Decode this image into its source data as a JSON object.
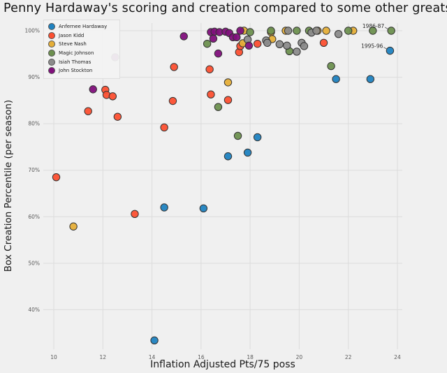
{
  "title": "Penny Hardaway's scoring and creation compared to some other greats",
  "chart_data": {
    "type": "scatter",
    "title": "Penny Hardaway's scoring and creation compared to some other greats",
    "xlabel": "Inflation Adjusted Pts/75 poss",
    "ylabel": "Box Creation Percentile (per season)",
    "x_ticks": [
      10,
      12,
      14,
      16,
      18,
      20,
      22,
      24
    ],
    "y_ticks": [
      40,
      50,
      60,
      70,
      80,
      90,
      100
    ],
    "y_tick_suffix": "%",
    "xlim": [
      9.57,
      24.2
    ],
    "ylim": [
      31.5,
      101.7
    ],
    "grid": true,
    "legend_position": "upper-left",
    "marker_edge_color": "#333333",
    "grid_color": "#dcdcdc",
    "background_color": "#f0f0f0",
    "series": [
      {
        "name": "Anfernee Hardaway",
        "color": "#1f82c0",
        "points": [
          [
            14.1,
            33.4
          ],
          [
            14.5,
            62.0
          ],
          [
            16.1,
            61.8
          ],
          [
            17.1,
            73.0
          ],
          [
            17.9,
            73.8
          ],
          [
            18.3,
            77.1
          ],
          [
            21.5,
            89.6
          ],
          [
            22.9,
            89.6
          ],
          [
            23.7,
            95.7
          ]
        ]
      },
      {
        "name": "Jason Kidd",
        "color": "#fc4f30",
        "points": [
          [
            10.1,
            68.5
          ],
          [
            11.4,
            82.7
          ],
          [
            12.1,
            87.3
          ],
          [
            12.15,
            86.2
          ],
          [
            12.4,
            85.9
          ],
          [
            12.6,
            81.5
          ],
          [
            13.3,
            60.6
          ],
          [
            14.5,
            79.2
          ],
          [
            14.85,
            84.9
          ],
          [
            14.9,
            92.2
          ],
          [
            16.35,
            91.7
          ],
          [
            16.4,
            86.3
          ],
          [
            17.1,
            85.1
          ],
          [
            17.55,
            95.4
          ],
          [
            17.6,
            96.7
          ],
          [
            18.3,
            97.2
          ],
          [
            21.0,
            97.4
          ]
        ]
      },
      {
        "name": "Steve Nash",
        "color": "#e5ae38",
        "points": [
          [
            10.8,
            57.9
          ],
          [
            17.1,
            88.9
          ],
          [
            17.7,
            97.3
          ],
          [
            17.75,
            100
          ],
          [
            18.85,
            99.7
          ],
          [
            18.9,
            98.2
          ],
          [
            19.45,
            100
          ],
          [
            20.75,
            100
          ],
          [
            21.1,
            100
          ],
          [
            22.2,
            100
          ]
        ]
      },
      {
        "name": "Magic Johnson",
        "color": "#6d904f",
        "points": [
          [
            16.25,
            97.2
          ],
          [
            16.7,
            83.6
          ],
          [
            17.5,
            77.4
          ],
          [
            18.0,
            99.7
          ],
          [
            18.85,
            100
          ],
          [
            19.6,
            95.6
          ],
          [
            19.9,
            100
          ],
          [
            20.4,
            100
          ],
          [
            21.3,
            92.4
          ],
          [
            22.0,
            100
          ],
          [
            23.0,
            100
          ],
          [
            23.75,
            100
          ]
        ]
      },
      {
        "name": "Isiah Thomas",
        "color": "#8b8b8b",
        "points": [
          [
            17.9,
            98.1
          ],
          [
            18.65,
            97.9
          ],
          [
            18.7,
            97.4
          ],
          [
            19.2,
            97.1
          ],
          [
            19.5,
            96.8
          ],
          [
            19.55,
            100
          ],
          [
            19.9,
            95.5
          ],
          [
            20.1,
            97.4
          ],
          [
            20.2,
            96.7
          ],
          [
            20.5,
            99.6
          ],
          [
            20.7,
            100
          ],
          [
            21.6,
            99.3
          ]
        ]
      },
      {
        "name": "John Stockton",
        "color": "#810f7c",
        "points": [
          [
            11.6,
            87.4
          ],
          [
            12.5,
            94.3
          ],
          [
            15.3,
            98.8
          ],
          [
            16.4,
            99.7
          ],
          [
            16.5,
            98.3
          ],
          [
            16.55,
            99.8
          ],
          [
            16.7,
            95.1
          ],
          [
            16.75,
            99.7
          ],
          [
            17.0,
            99.8
          ],
          [
            17.15,
            99.5
          ],
          [
            17.3,
            98.6
          ],
          [
            17.45,
            98.6
          ],
          [
            17.6,
            100
          ],
          [
            17.95,
            96.8
          ]
        ]
      }
    ],
    "annotations": [
      {
        "text": "1986-87",
        "x": 23.75,
        "y": 100
      },
      {
        "text": "1995-96",
        "x": 23.7,
        "y": 95.7
      }
    ]
  }
}
